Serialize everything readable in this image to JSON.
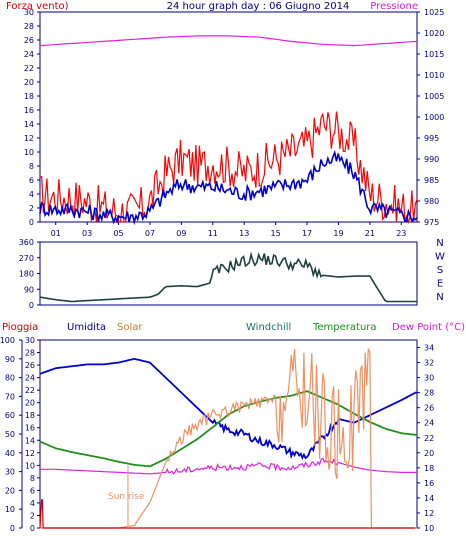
{
  "header": {
    "left_label": "Forza vento",
    "left_unit": ")",
    "title": "24 hour graph day : 06 Giugno 2014",
    "right_label": "Pressione"
  },
  "colors": {
    "axis": "#000080",
    "wind_gust": "#ff0000",
    "wind_avg": "#0000cc",
    "pressure": "#e020e0",
    "direction": "#204040",
    "humidity": "#0000cc",
    "solar": "#f09060",
    "temperature": "#1f8f1f",
    "dewpoint": "#e020e0",
    "rain": "#d00000"
  },
  "chart_data": [
    {
      "type": "line",
      "panel": "wind-pressure",
      "xlim": [
        0,
        24
      ],
      "x_ticks": [
        "01",
        "03",
        "05",
        "07",
        "09",
        "11",
        "13",
        "15",
        "17",
        "19",
        "21",
        "23"
      ],
      "left_axis": {
        "label": "Forza vento)",
        "ylim": [
          0,
          30
        ],
        "ticks": [
          0,
          2,
          4,
          6,
          8,
          10,
          12,
          14,
          16,
          18,
          20,
          22,
          24,
          26,
          28,
          30
        ]
      },
      "right_axis": {
        "label": "Pressione",
        "ylim": [
          975,
          1025
        ],
        "ticks": [
          975,
          980,
          985,
          990,
          995,
          1000,
          1005,
          1010,
          1015,
          1020,
          1025
        ]
      },
      "series": [
        {
          "key": "gust",
          "axis": "left",
          "x": [
            0,
            1,
            2,
            3,
            4,
            5,
            6,
            7,
            8,
            9,
            10,
            11,
            12,
            13,
            14,
            15,
            16,
            17,
            18,
            19,
            20,
            21,
            22,
            23,
            23.9
          ],
          "values": [
            4,
            3.5,
            3.5,
            3,
            2,
            1.5,
            1.5,
            3,
            7,
            9,
            8,
            8.5,
            8,
            7,
            8,
            9,
            10,
            11,
            14,
            13,
            11,
            4,
            3,
            2,
            1.5
          ]
        },
        {
          "key": "avg",
          "axis": "left",
          "x": [
            0,
            1,
            2,
            3,
            4,
            5,
            6,
            7,
            8,
            9,
            10,
            11,
            12,
            13,
            14,
            15,
            16,
            17,
            18,
            19,
            20,
            21,
            22,
            23,
            23.9
          ],
          "values": [
            2,
            1.8,
            1.8,
            1.5,
            1,
            0.8,
            0.8,
            1.5,
            4,
            5.5,
            5,
            5,
            4.5,
            4,
            4.5,
            5,
            5.5,
            6,
            8.5,
            9,
            7,
            2,
            1.5,
            1,
            0.8
          ]
        },
        {
          "key": "pressure",
          "axis": "right",
          "x": [
            0,
            2,
            4,
            6,
            8,
            10,
            12,
            14,
            16,
            18,
            20,
            22,
            23.9
          ],
          "values": [
            1017,
            1017.5,
            1018,
            1018.5,
            1019,
            1019.3,
            1019.3,
            1019,
            1018,
            1017.3,
            1017,
            1017.5,
            1018
          ]
        }
      ]
    },
    {
      "type": "line",
      "panel": "wind-direction",
      "xlim": [
        0,
        24
      ],
      "ylim": [
        0,
        360
      ],
      "y_ticks": [
        0,
        45,
        90,
        135,
        180,
        225,
        270,
        315,
        360
      ],
      "compass_labels": [
        "N",
        "W",
        "S",
        "E",
        "N"
      ],
      "series": [
        {
          "key": "direction",
          "x": [
            0,
            1,
            2,
            3,
            4,
            5,
            6,
            7,
            7.5,
            8,
            9,
            10,
            10.8,
            11,
            12,
            13,
            14,
            15,
            16,
            17,
            18,
            19,
            20,
            21,
            22,
            23,
            23.9
          ],
          "values": [
            45,
            30,
            20,
            25,
            30,
            35,
            40,
            45,
            60,
            105,
            110,
            105,
            125,
            180,
            220,
            250,
            265,
            255,
            235,
            225,
            170,
            160,
            165,
            165,
            20,
            20,
            20
          ]
        }
      ]
    },
    {
      "type": "line",
      "panel": "weather",
      "labels": {
        "rain": "Pioggia",
        "humidity": "Umidita",
        "solar": "Solar",
        "windchill": "Windchill",
        "temperature": "Temperatura",
        "dewpoint": "Dew Point (°C)"
      },
      "annotation": "Sun rise",
      "xlim": [
        0,
        24
      ],
      "humidity_axis": {
        "ylim": [
          0,
          100
        ],
        "ticks": [
          0,
          10,
          20,
          30,
          40,
          50,
          60,
          70,
          80,
          90,
          100
        ]
      },
      "rain_axis": {
        "ylim": [
          0,
          30
        ],
        "ticks": [
          0,
          2,
          4,
          6,
          8,
          10,
          12,
          14,
          16,
          18,
          20,
          22,
          24,
          26,
          28,
          30
        ]
      },
      "temp_axis": {
        "ylim": [
          10,
          35
        ],
        "ticks": [
          10,
          12,
          14,
          16,
          18,
          20,
          22,
          24,
          26,
          28,
          30,
          32,
          34
        ]
      },
      "series": [
        {
          "key": "humidity",
          "axis": "humidity",
          "x": [
            0,
            1,
            2,
            3,
            4,
            5,
            6,
            7,
            8,
            9,
            10,
            11,
            12,
            13,
            14,
            15,
            16,
            17,
            18,
            19,
            20,
            21,
            22,
            23,
            23.9
          ],
          "values": [
            82,
            85,
            86,
            87,
            87,
            88,
            90,
            88,
            80,
            72,
            64,
            56,
            52,
            50,
            46,
            44,
            40,
            38,
            48,
            58,
            56,
            60,
            64,
            68,
            72
          ]
        },
        {
          "key": "temperature",
          "axis": "temp",
          "x": [
            0,
            1,
            2,
            3,
            4,
            5,
            6,
            7,
            8,
            9,
            10,
            11,
            12,
            13,
            14,
            15,
            16,
            17,
            18,
            19,
            20,
            21,
            22,
            23,
            23.9
          ],
          "values": [
            21.5,
            20.6,
            20.1,
            19.7,
            19.3,
            18.8,
            18.4,
            18.2,
            19.2,
            20.5,
            21.8,
            23.4,
            25.1,
            26.2,
            26.8,
            27.3,
            27.6,
            28.2,
            27.3,
            26.4,
            25.2,
            24.1,
            23.2,
            22.6,
            22.4
          ]
        },
        {
          "key": "dewpoint",
          "axis": "temp",
          "x": [
            0,
            1,
            2,
            3,
            4,
            5,
            6,
            7,
            8,
            9,
            10,
            11,
            12,
            13,
            14,
            15,
            16,
            17,
            18,
            19,
            20,
            21,
            22,
            23,
            23.9
          ],
          "values": [
            17.8,
            17.8,
            17.7,
            17.6,
            17.5,
            17.4,
            17.3,
            17.2,
            17.4,
            17.6,
            17.9,
            18,
            18.1,
            18.1,
            18.3,
            18.1,
            18,
            18.4,
            18.9,
            18.7,
            18.1,
            17.7,
            17.5,
            17.4,
            17.4
          ]
        },
        {
          "key": "solar",
          "axis": "rain",
          "x": [
            0,
            5,
            6,
            7,
            8,
            9,
            10,
            11,
            12,
            13,
            14,
            15,
            16,
            17,
            18,
            19,
            20,
            21,
            21.1,
            23.9
          ],
          "values": [
            0,
            0,
            0.4,
            4.1,
            10.5,
            14.3,
            16.5,
            18,
            18.8,
            19.5,
            20,
            20.3,
            21,
            22.6,
            17.2,
            14.5,
            16.9,
            28,
            0,
            0
          ]
        },
        {
          "key": "rain",
          "axis": "rain",
          "x": [
            0,
            0.1,
            0.15,
            0.2,
            23.9
          ],
          "values": [
            0,
            4.5,
            4.5,
            0,
            0
          ]
        }
      ]
    }
  ]
}
